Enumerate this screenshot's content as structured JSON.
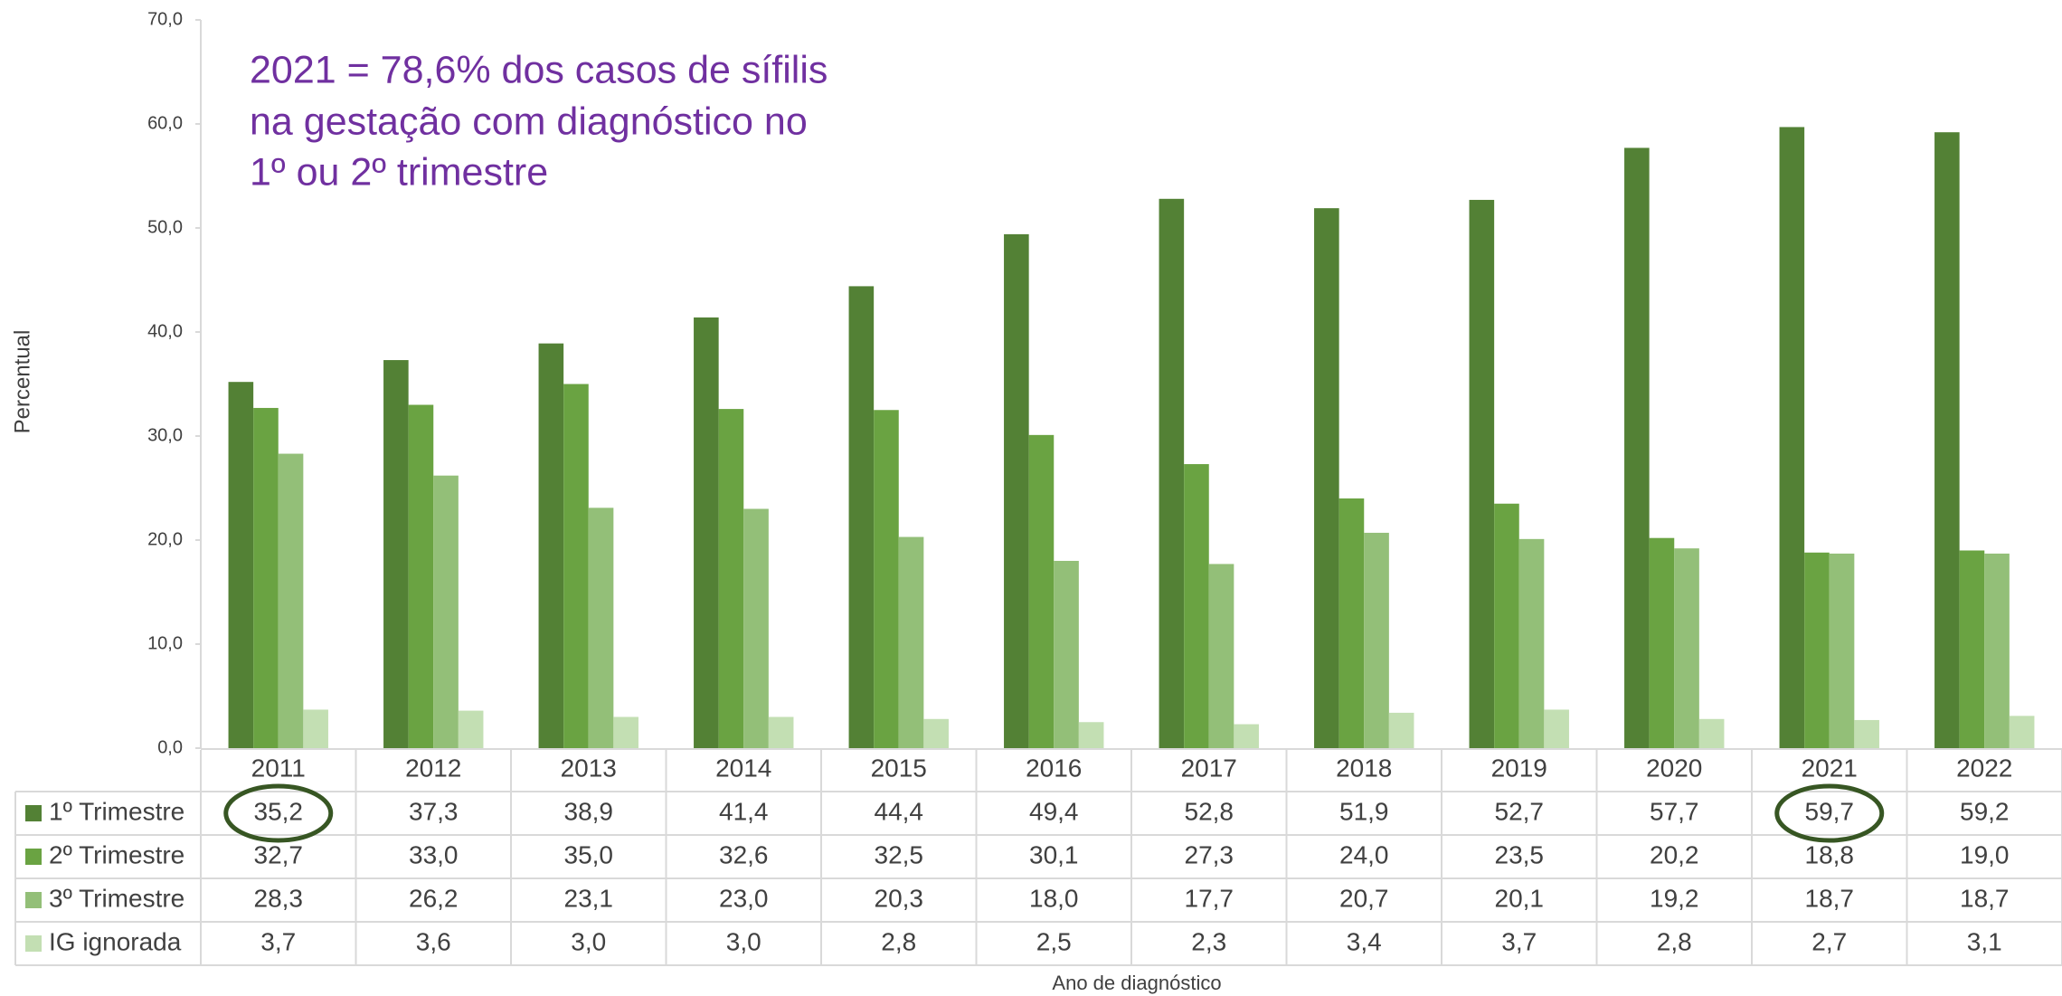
{
  "chart_data": {
    "type": "bar",
    "annotation": [
      "2021 = 78,6% dos casos de sífilis",
      "na gestação com diagnóstico no",
      "1º ou 2º trimestre"
    ],
    "ylabel": "Percentual",
    "xlabel": "Ano de diagnóstico",
    "categories": [
      "2011",
      "2012",
      "2013",
      "2014",
      "2015",
      "2016",
      "2017",
      "2018",
      "2019",
      "2020",
      "2021",
      "2022"
    ],
    "ylim": [
      0,
      70
    ],
    "yticks": [
      {
        "value": 0,
        "label": "0,0"
      },
      {
        "value": 10,
        "label": "10,0"
      },
      {
        "value": 20,
        "label": "20,0"
      },
      {
        "value": 30,
        "label": "30,0"
      },
      {
        "value": 40,
        "label": "40,0"
      },
      {
        "value": 50,
        "label": "50,0"
      },
      {
        "value": 60,
        "label": "60,0"
      },
      {
        "value": 70,
        "label": "70,0"
      }
    ],
    "series": [
      {
        "name": "1º Trimestre",
        "color": "#538135",
        "values": [
          35.2,
          37.3,
          38.9,
          41.4,
          44.4,
          49.4,
          52.8,
          51.9,
          52.7,
          57.7,
          59.7,
          59.2
        ],
        "value_labels": [
          "35,2",
          "37,3",
          "38,9",
          "41,4",
          "44,4",
          "49,4",
          "52,8",
          "51,9",
          "52,7",
          "57,7",
          "59,7",
          "59,2"
        ]
      },
      {
        "name": "2º Trimestre",
        "color": "#6aa342",
        "values": [
          32.7,
          33.0,
          35.0,
          32.6,
          32.5,
          30.1,
          27.3,
          24.0,
          23.5,
          20.2,
          18.8,
          19.0
        ],
        "value_labels": [
          "32,7",
          "33,0",
          "35,0",
          "32,6",
          "32,5",
          "30,1",
          "27,3",
          "24,0",
          "23,5",
          "20,2",
          "18,8",
          "19,0"
        ]
      },
      {
        "name": "3º Trimestre",
        "color": "#93bf78",
        "values": [
          28.3,
          26.2,
          23.1,
          23.0,
          20.3,
          18.0,
          17.7,
          20.7,
          20.1,
          19.2,
          18.7,
          18.7
        ],
        "value_labels": [
          "28,3",
          "26,2",
          "23,1",
          "23,0",
          "20,3",
          "18,0",
          "17,7",
          "20,7",
          "20,1",
          "19,2",
          "18,7",
          "18,7"
        ]
      },
      {
        "name": "IG ignorada",
        "color": "#c3dfb3",
        "values": [
          3.7,
          3.6,
          3.0,
          3.0,
          2.8,
          2.5,
          2.3,
          3.4,
          3.7,
          2.8,
          2.7,
          3.1
        ],
        "value_labels": [
          "3,7",
          "3,6",
          "3,0",
          "3,0",
          "2,8",
          "2,5",
          "2,3",
          "3,4",
          "3,7",
          "2,8",
          "2,7",
          "3,1"
        ]
      }
    ]
  }
}
